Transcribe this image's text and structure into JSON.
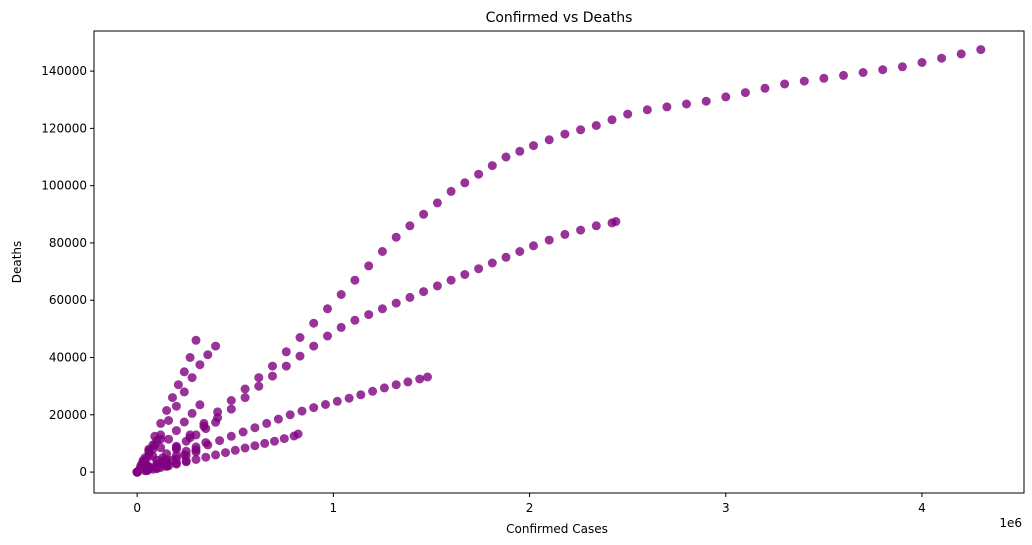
{
  "chart_data": {
    "type": "scatter",
    "title": "Confirmed vs Deaths",
    "xlabel": "Confirmed Cases",
    "ylabel": "Deaths",
    "x_offset_label": "1e6",
    "xlim": [
      -220000,
      4520000
    ],
    "ylim": [
      -7300,
      154000
    ],
    "x_ticks": [
      {
        "value": 0,
        "label": "0"
      },
      {
        "value": 1000000,
        "label": "1"
      },
      {
        "value": 2000000,
        "label": "2"
      },
      {
        "value": 3000000,
        "label": "3"
      },
      {
        "value": 4000000,
        "label": "4"
      }
    ],
    "y_ticks": [
      {
        "value": 0,
        "label": "0"
      },
      {
        "value": 20000,
        "label": "20000"
      },
      {
        "value": 40000,
        "label": "40000"
      },
      {
        "value": 60000,
        "label": "60000"
      },
      {
        "value": 80000,
        "label": "80000"
      },
      {
        "value": 100000,
        "label": "100000"
      },
      {
        "value": 120000,
        "label": "120000"
      },
      {
        "value": 140000,
        "label": "140000"
      }
    ],
    "grid": false,
    "marker_color": "#800080",
    "marker_alpha": 0.8,
    "series": [
      {
        "x": [
          0,
          60000,
          130000,
          200000,
          270000,
          340000,
          410000,
          480000,
          550000,
          620000,
          690000,
          760000,
          830000,
          900000,
          970000,
          1040000,
          1110000,
          1180000,
          1250000,
          1320000,
          1390000,
          1460000,
          1530000,
          1600000,
          1670000,
          1740000,
          1810000,
          1880000,
          1950000,
          2020000,
          2100000,
          2180000,
          2260000,
          2340000,
          2420000,
          2500000,
          2600000,
          2700000,
          2800000,
          2900000,
          3000000,
          3100000,
          3200000,
          3300000,
          3400000,
          3500000,
          3600000,
          3700000,
          3800000,
          3900000,
          4000000,
          4100000,
          4200000,
          4300000
        ],
        "y": [
          0,
          2000,
          5000,
          9000,
          13000,
          17000,
          21000,
          25000,
          29000,
          33000,
          37000,
          42000,
          47000,
          52000,
          57000,
          62000,
          67000,
          72000,
          77000,
          82000,
          86000,
          90000,
          94000,
          98000,
          101000,
          104000,
          107000,
          110000,
          112000,
          114000,
          116000,
          118000,
          119500,
          121000,
          123000,
          125000,
          126500,
          127500,
          128500,
          129500,
          131000,
          132500,
          134000,
          135500,
          136500,
          137500,
          138500,
          139500,
          140500,
          141500,
          143000,
          144500,
          146000,
          147500
        ]
      },
      {
        "x": [
          0,
          60000,
          130000,
          200000,
          270000,
          340000,
          410000,
          480000,
          550000,
          620000,
          690000,
          760000,
          830000,
          900000,
          970000,
          1040000,
          1110000,
          1180000,
          1250000,
          1320000,
          1390000,
          1460000,
          1530000,
          1600000,
          1670000,
          1740000,
          1810000,
          1880000,
          1950000,
          2020000,
          2100000,
          2180000,
          2260000,
          2340000,
          2420000,
          2440000
        ],
        "y": [
          0,
          1500,
          4000,
          8000,
          12000,
          16000,
          19000,
          22000,
          26000,
          30000,
          33500,
          37000,
          40500,
          44000,
          47500,
          50500,
          53000,
          55000,
          57000,
          59000,
          61000,
          63000,
          65000,
          67000,
          69000,
          71000,
          73000,
          75000,
          77000,
          79000,
          81000,
          83000,
          84500,
          86000,
          87000,
          87500
        ]
      },
      {
        "x": [
          0,
          60000,
          120000,
          180000,
          240000,
          300000,
          360000,
          420000,
          480000,
          540000,
          600000,
          660000,
          720000,
          780000,
          840000,
          900000,
          960000,
          1020000,
          1080000,
          1140000,
          1200000,
          1260000,
          1320000,
          1380000,
          1440000,
          1480000
        ],
        "y": [
          0,
          1000,
          2500,
          4200,
          6000,
          7800,
          9500,
          11000,
          12500,
          14000,
          15500,
          17000,
          18500,
          20000,
          21300,
          22500,
          23600,
          24700,
          25800,
          27000,
          28200,
          29400,
          30500,
          31500,
          32500,
          33200
        ]
      },
      {
        "x": [
          0,
          50000,
          100000,
          150000,
          200000,
          250000,
          300000,
          350000,
          400000,
          450000,
          500000,
          550000,
          600000,
          650000,
          700000,
          750000,
          800000,
          820000
        ],
        "y": [
          0,
          500,
          1200,
          2000,
          2800,
          3600,
          4400,
          5200,
          6000,
          6800,
          7600,
          8400,
          9200,
          10000,
          10800,
          11700,
          12600,
          13300
        ]
      },
      {
        "x": [
          0,
          40000,
          80000,
          120000,
          160000,
          200000,
          240000,
          280000,
          320000,
          360000,
          400000
        ],
        "y": [
          0,
          3000,
          8000,
          13000,
          18000,
          23000,
          28000,
          33000,
          37500,
          41000,
          44000
        ]
      },
      {
        "x": [
          0,
          30000,
          60000,
          90000,
          120000,
          150000,
          180000,
          210000,
          240000,
          270000,
          300000
        ],
        "y": [
          0,
          3500,
          8000,
          12500,
          17000,
          21500,
          26000,
          30500,
          35000,
          40000,
          46000
        ]
      },
      {
        "x": [
          0,
          40000,
          80000,
          120000,
          160000,
          200000,
          240000,
          280000,
          320000
        ],
        "y": [
          0,
          2500,
          5500,
          8500,
          11500,
          14500,
          17500,
          20500,
          23500
        ]
      },
      {
        "x": [
          0,
          50000,
          100000,
          150000,
          200000,
          250000,
          300000,
          350000,
          400000
        ],
        "y": [
          0,
          2000,
          4200,
          6400,
          8600,
          10800,
          13000,
          15200,
          17400
        ]
      },
      {
        "x": [
          0,
          50000,
          100000,
          150000,
          200000,
          250000,
          300000,
          350000
        ],
        "y": [
          0,
          1300,
          2800,
          4300,
          5800,
          7300,
          8800,
          10300
        ]
      },
      {
        "x": [
          0,
          50000,
          100000,
          150000,
          200000,
          250000,
          300000
        ],
        "y": [
          0,
          1000,
          2200,
          3400,
          4600,
          5800,
          7000
        ]
      },
      {
        "x": [
          0,
          50000,
          100000,
          150000,
          200000,
          250000
        ],
        "y": [
          0,
          700,
          1500,
          2300,
          3100,
          3900
        ]
      },
      {
        "x": [
          0,
          30000,
          60000,
          90000,
          120000
        ],
        "y": [
          0,
          4000,
          7000,
          9500,
          11500
        ]
      },
      {
        "x": [
          0,
          20000,
          40000,
          60000,
          80000,
          100000
        ],
        "y": [
          0,
          2500,
          5000,
          7500,
          9500,
          11000
        ]
      },
      {
        "x": [
          0,
          40000,
          80000,
          120000,
          160000
        ],
        "y": [
          0,
          500,
          1000,
          1600,
          2200
        ]
      },
      {
        "x": [
          0,
          15000,
          30000,
          45000,
          60000
        ],
        "y": [
          0,
          1500,
          3000,
          4500,
          6000
        ]
      }
    ]
  }
}
